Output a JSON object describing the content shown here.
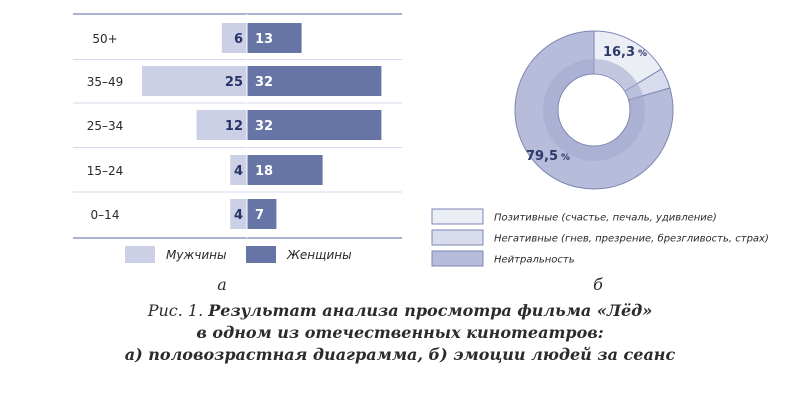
{
  "chart_data": [
    {
      "type": "bar",
      "orientation": "horizontal-population-pyramid",
      "categories": [
        "50+",
        "35–49",
        "25–34",
        "15–24",
        "0–14"
      ],
      "series": [
        {
          "name": "Мужчины",
          "values": [
            6,
            25,
            12,
            4,
            4
          ],
          "color": "#ccd0e6"
        },
        {
          "name": "Женщины",
          "values": [
            13,
            32,
            32,
            18,
            7
          ],
          "color": "#6674a6"
        }
      ],
      "panel_label": "а",
      "legend_position": "bottom",
      "grid": false
    },
    {
      "type": "pie",
      "style": "donut",
      "slices": [
        {
          "name": "Позитивные (счастье, печаль, удивление)",
          "value": 16.3,
          "label": "16,3",
          "unit": "%",
          "color": "#eceef6"
        },
        {
          "name": "Негативные (гнев, презрение, брезгливость, страх)",
          "value": 4.2,
          "label": "",
          "unit": "",
          "color": "#d8dcec"
        },
        {
          "name": "Нейтральность",
          "value": 79.5,
          "label": "79,5",
          "unit": "%",
          "color": "#b6bcd9"
        }
      ],
      "panel_label": "б",
      "legend_position": "bottom"
    }
  ],
  "caption": {
    "line1_prefix": "Рис. 1. ",
    "line1_bold": "Результат анализа просмотра фильма «Лёд»",
    "line2": "в одном из отечественных кинотеатров:",
    "line3": "а) половозрастная диаграмма, б) эмоции людей за сеанс"
  },
  "colors": {
    "axis": "#7c85b3",
    "label_text": "#2c3a6a",
    "slice_border": "#7d86b5",
    "legend_border": "#7d86b5"
  }
}
